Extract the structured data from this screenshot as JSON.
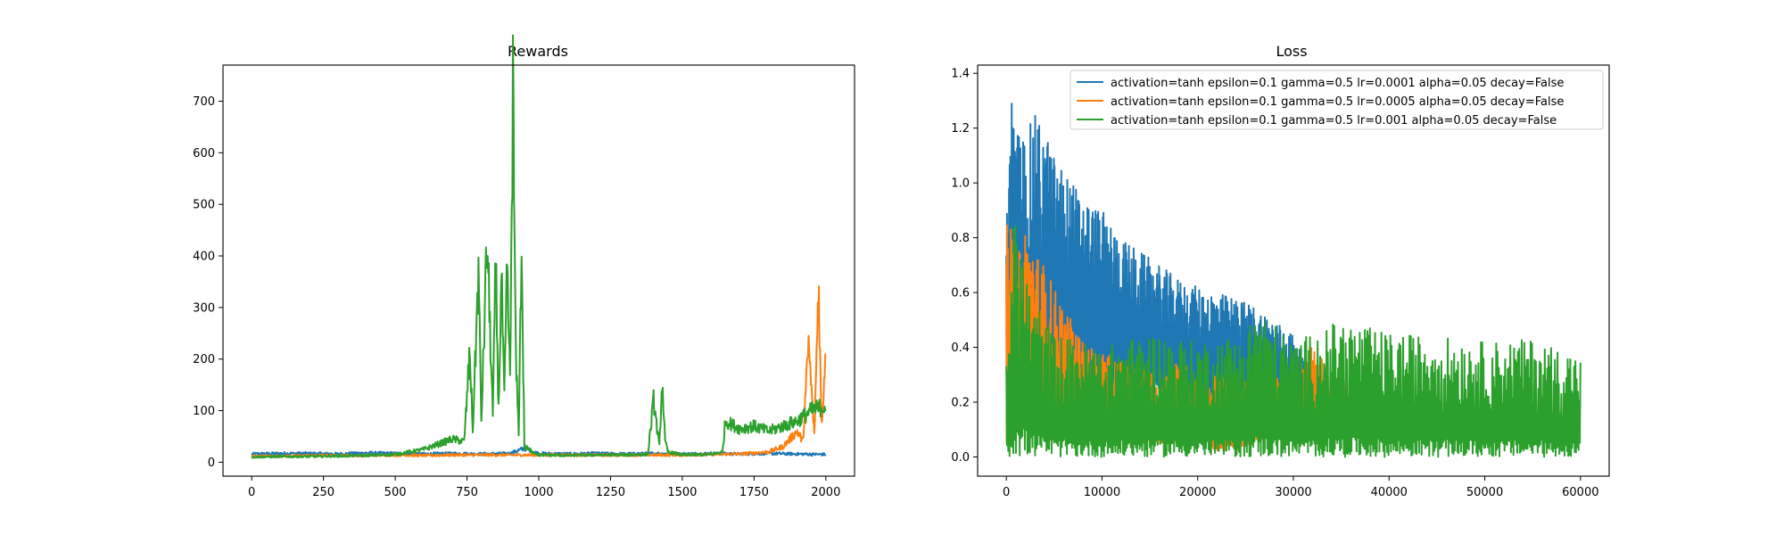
{
  "chart_data": [
    {
      "type": "line",
      "title": "Rewards",
      "xlabel": "",
      "ylabel": "",
      "xlim": [
        -100,
        2100
      ],
      "ylim": [
        -27,
        770
      ],
      "xticks": [
        0,
        250,
        500,
        750,
        1000,
        1250,
        1500,
        1750,
        2000
      ],
      "xtick_labels": [
        "0",
        "250",
        "500",
        "750",
        "1000",
        "1250",
        "1500",
        "1750",
        "2000"
      ],
      "yticks": [
        0,
        100,
        200,
        300,
        400,
        500,
        600,
        700
      ],
      "ytick_labels": [
        "0",
        "100",
        "200",
        "300",
        "400",
        "500",
        "600",
        "700"
      ],
      "grid": false,
      "legend": null,
      "series": [
        {
          "color": "#1f77b4",
          "x": [
            0,
            100,
            200,
            300,
            400,
            500,
            600,
            700,
            800,
            900,
            950,
            1000,
            1100,
            1200,
            1300,
            1400,
            1500,
            1600,
            1700,
            1800,
            1900,
            2000
          ],
          "y": [
            16,
            17,
            17,
            16,
            18,
            17,
            16,
            17,
            16,
            17,
            27,
            17,
            16,
            17,
            16,
            17,
            16,
            17,
            16,
            17,
            16,
            15
          ]
        },
        {
          "color": "#ff7f0e",
          "x": [
            0,
            100,
            200,
            300,
            400,
            500,
            600,
            700,
            800,
            900,
            1000,
            1100,
            1200,
            1300,
            1400,
            1500,
            1600,
            1700,
            1800,
            1850,
            1900,
            1920,
            1940,
            1960,
            1975,
            1985,
            2000
          ],
          "y": [
            12,
            12,
            13,
            13,
            13,
            14,
            13,
            14,
            14,
            14,
            14,
            14,
            14,
            14,
            14,
            14,
            15,
            16,
            20,
            30,
            60,
            40,
            230,
            50,
            360,
            60,
            230
          ]
        },
        {
          "color": "#2ca02c",
          "x": [
            0,
            100,
            200,
            300,
            400,
            500,
            600,
            650,
            700,
            740,
            760,
            770,
            790,
            800,
            820,
            840,
            850,
            860,
            870,
            880,
            890,
            900,
            910,
            920,
            930,
            940,
            950,
            1000,
            1100,
            1200,
            1300,
            1380,
            1400,
            1420,
            1430,
            1440,
            1450,
            1500,
            1600,
            1640,
            1650,
            1700,
            1750,
            1800,
            1850,
            1900,
            1950,
            2000
          ],
          "y": [
            10,
            11,
            11,
            12,
            13,
            15,
            25,
            35,
            45,
            40,
            215,
            60,
            370,
            80,
            435,
            90,
            390,
            100,
            360,
            120,
            380,
            150,
            735,
            200,
            60,
            415,
            30,
            14,
            13,
            14,
            14,
            15,
            120,
            30,
            160,
            40,
            20,
            14,
            15,
            20,
            80,
            65,
            70,
            60,
            70,
            80,
            100,
            110
          ]
        }
      ]
    },
    {
      "type": "line",
      "title": "Loss",
      "xlabel": "",
      "ylabel": "",
      "xlim": [
        -3000,
        63000
      ],
      "ylim": [
        -0.07,
        1.43
      ],
      "xticks": [
        0,
        10000,
        20000,
        30000,
        40000,
        50000,
        60000
      ],
      "xtick_labels": [
        "0",
        "10000",
        "20000",
        "30000",
        "40000",
        "50000",
        "60000"
      ],
      "yticks": [
        0.0,
        0.2,
        0.4,
        0.6,
        0.8,
        1.0,
        1.2,
        1.4
      ],
      "ytick_labels": [
        "0.0",
        "0.2",
        "0.4",
        "0.6",
        "0.8",
        "1.0",
        "1.2",
        "1.4"
      ],
      "grid": false,
      "legend": "top-right",
      "series": [
        {
          "name": "activation=tanh epsilon=0.1 gamma=0.5 lr=0.0001 alpha=0.05 decay=False",
          "color": "#1f77b4",
          "x": [
            0,
            500,
            1000,
            2000,
            3000,
            4000,
            5000,
            6000,
            8000,
            10000,
            12000,
            14000,
            16000,
            18000,
            20000,
            22000,
            24000,
            26000,
            28000,
            30000,
            31500
          ],
          "upper": [
            0.85,
            1.35,
            1.2,
            1.18,
            1.25,
            1.2,
            1.1,
            1.05,
            0.95,
            0.9,
            0.8,
            0.75,
            0.7,
            0.65,
            0.62,
            0.6,
            0.58,
            0.55,
            0.5,
            0.45,
            0.32
          ],
          "lower": [
            0.0,
            0.05,
            0.1,
            0.15,
            0.2,
            0.2,
            0.22,
            0.22,
            0.2,
            0.2,
            0.2,
            0.2,
            0.2,
            0.18,
            0.18,
            0.18,
            0.18,
            0.18,
            0.18,
            0.18,
            0.18
          ]
        },
        {
          "name": "activation=tanh epsilon=0.1 gamma=0.5 lr=0.0005 alpha=0.05 decay=False",
          "color": "#ff7f0e",
          "x": [
            0,
            500,
            1000,
            2000,
            3000,
            4000,
            5000,
            6000,
            8000,
            10000,
            12000,
            14000,
            16000,
            18000,
            20000,
            22000,
            24000,
            26000,
            28000,
            30000,
            32000,
            34000,
            35500
          ],
          "upper": [
            0.85,
            0.85,
            0.7,
            0.85,
            0.75,
            0.7,
            0.62,
            0.55,
            0.42,
            0.38,
            0.35,
            0.32,
            0.3,
            0.35,
            0.3,
            0.3,
            0.3,
            0.28,
            0.3,
            0.28,
            0.44,
            0.3,
            0.3
          ],
          "lower": [
            0.0,
            0.08,
            0.1,
            0.12,
            0.12,
            0.1,
            0.1,
            0.1,
            0.08,
            0.08,
            0.08,
            0.05,
            0.05,
            0.05,
            0.05,
            0.02,
            0.02,
            0.05,
            0.08,
            0.08,
            0.08,
            0.08,
            0.08
          ]
        },
        {
          "name": "activation=tanh epsilon=0.1 gamma=0.5 lr=0.001 alpha=0.05 decay=False",
          "color": "#2ca02c",
          "x": [
            0,
            500,
            1000,
            1500,
            2500,
            5000,
            10000,
            15000,
            20000,
            25000,
            26000,
            30000,
            35000,
            40000,
            45000,
            50000,
            55000,
            60000
          ],
          "upper": [
            0.5,
            0.6,
            1.0,
            0.8,
            0.6,
            0.45,
            0.4,
            0.45,
            0.42,
            0.45,
            0.55,
            0.42,
            0.5,
            0.45,
            0.44,
            0.42,
            0.43,
            0.37
          ],
          "lower": [
            0.0,
            0.0,
            0.0,
            0.0,
            0.0,
            0.0,
            0.0,
            0.0,
            0.0,
            0.0,
            0.0,
            0.0,
            0.0,
            0.0,
            0.0,
            0.0,
            0.0,
            0.0
          ]
        }
      ]
    }
  ]
}
